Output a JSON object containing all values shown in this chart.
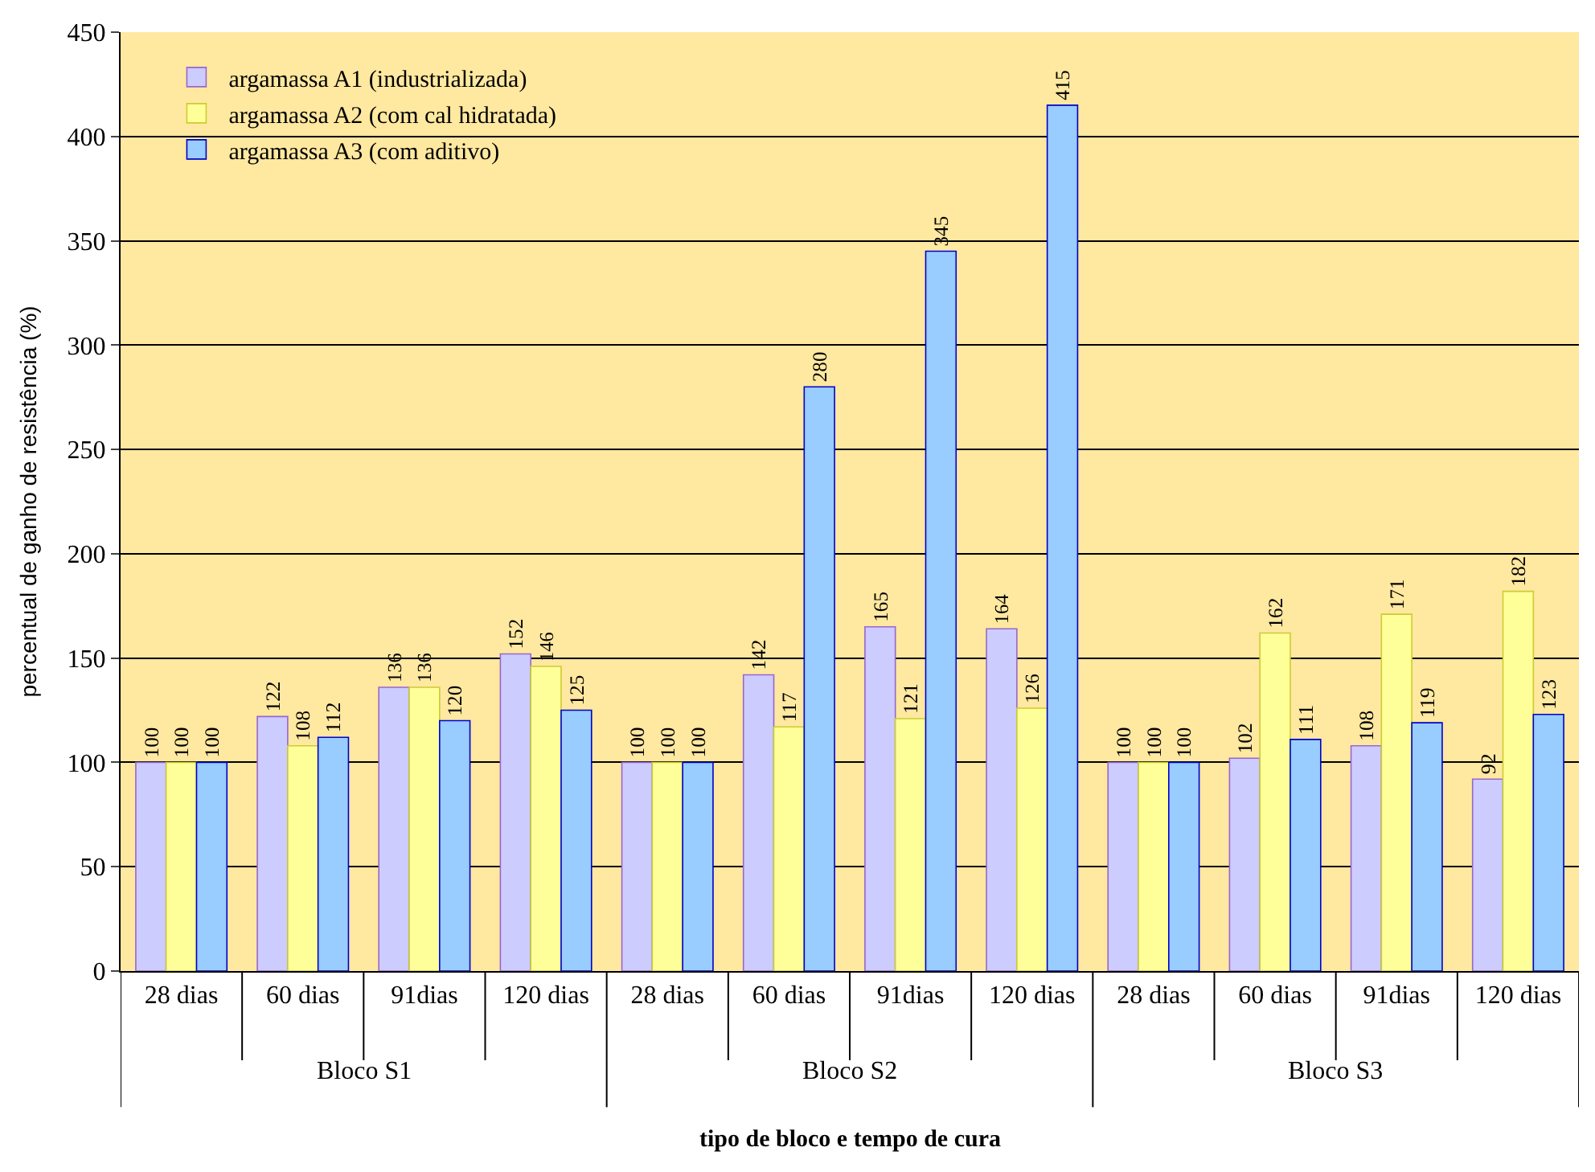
{
  "chart_data": {
    "type": "bar",
    "xlabel": "tipo de bloco e tempo de cura",
    "ylabel": "percentual de ganho de resistência (%)",
    "categories": [
      "28 dias",
      "60 dias",
      "91dias",
      "120 dias",
      "28 dias",
      "60 dias",
      "91dias",
      "120 dias",
      "28 dias",
      "60 dias",
      "91dias",
      "120 dias"
    ],
    "series": [
      {
        "name": "argamassa A1 (industrializada)",
        "color": "#ccccff",
        "values": [
          100,
          122,
          136,
          152,
          100,
          142,
          165,
          164,
          100,
          102,
          108,
          92
        ]
      },
      {
        "name": "argamassa A2 (com cal hidratada)",
        "color": "#ffff99",
        "values": [
          100,
          108,
          136,
          146,
          100,
          117,
          121,
          126,
          100,
          162,
          171,
          182
        ]
      },
      {
        "name": "argamassa A3 (com aditivo)",
        "color": "#99ccff",
        "values": [
          100,
          112,
          120,
          125,
          100,
          280,
          345,
          415,
          100,
          111,
          119,
          123
        ]
      }
    ],
    "annotations": [
      "Bloco S1",
      "Bloco S2",
      "Bloco S3"
    ],
    "ylim": [
      0,
      450
    ],
    "yticks": [
      0,
      50,
      100,
      150,
      200,
      250,
      300,
      350,
      400,
      450
    ],
    "grid": "y",
    "legend": "top left",
    "data_labels": true
  }
}
